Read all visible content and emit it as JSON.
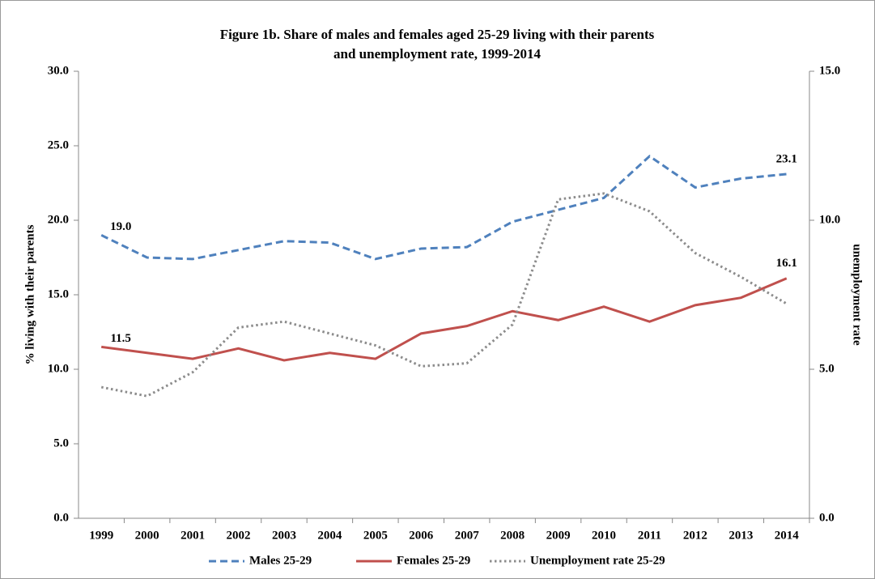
{
  "chart_data": {
    "type": "line",
    "title": [
      "Figure 1b. Share of males and females aged 25-29 living with their parents",
      "and unemployment rate, 1999-2014"
    ],
    "y_label": "% living with their parents",
    "y2_label": "unemployment  rate",
    "categories": [
      "1999",
      "2000",
      "2001",
      "2002",
      "2003",
      "2004",
      "2005",
      "2006",
      "2007",
      "2008",
      "2009",
      "2010",
      "2011",
      "2012",
      "2013",
      "2014"
    ],
    "series": [
      {
        "name": "Males 25-29",
        "color": "#4f81bd",
        "dash": "dashed",
        "values": [
          19.0,
          17.5,
          17.4,
          18.0,
          18.6,
          18.5,
          17.4,
          18.1,
          18.2,
          19.9,
          20.7,
          21.5,
          24.3,
          22.2,
          22.8,
          23.1
        ],
        "value_labels": [
          "19.0",
          null,
          null,
          null,
          null,
          null,
          null,
          null,
          null,
          null,
          null,
          null,
          null,
          null,
          null,
          "23.1"
        ]
      },
      {
        "name": "Females 25-29",
        "color": "#c0504d",
        "dash": "solid",
        "values": [
          11.5,
          11.1,
          10.7,
          11.4,
          10.6,
          11.1,
          10.7,
          12.4,
          12.9,
          13.9,
          13.3,
          14.2,
          13.2,
          14.3,
          14.8,
          16.1
        ],
        "value_labels": [
          "11.5",
          null,
          null,
          null,
          null,
          null,
          null,
          null,
          null,
          null,
          null,
          null,
          null,
          null,
          null,
          "16.1"
        ]
      },
      {
        "name": "Unemployment rate 25-29",
        "color": "#8c8c8c",
        "dash": "dotted",
        "axis": "y2",
        "values": [
          4.4,
          4.1,
          4.9,
          6.4,
          6.6,
          6.2,
          5.8,
          5.1,
          5.2,
          6.5,
          10.7,
          10.9,
          10.3,
          8.9,
          8.1,
          7.2
        ]
      }
    ],
    "ylim": [
      0,
      30
    ],
    "yticks": [
      {
        "value": 0,
        "label": "0.0"
      },
      {
        "value": 5,
        "label": "5.0"
      },
      {
        "value": 10,
        "label": "10.0"
      },
      {
        "value": 15,
        "label": "15.0"
      },
      {
        "value": 20,
        "label": "20.0"
      },
      {
        "value": 25,
        "label": "25.0"
      },
      {
        "value": 30,
        "label": "30.0"
      }
    ],
    "y2lim": [
      0,
      15
    ],
    "y2ticks": [
      {
        "value": 0,
        "label": "0.0"
      },
      {
        "value": 5,
        "label": "5.0"
      },
      {
        "value": 10,
        "label": "10.0"
      },
      {
        "value": 15,
        "label": "15.0"
      }
    ],
    "grid": false,
    "legend": "bottom"
  }
}
